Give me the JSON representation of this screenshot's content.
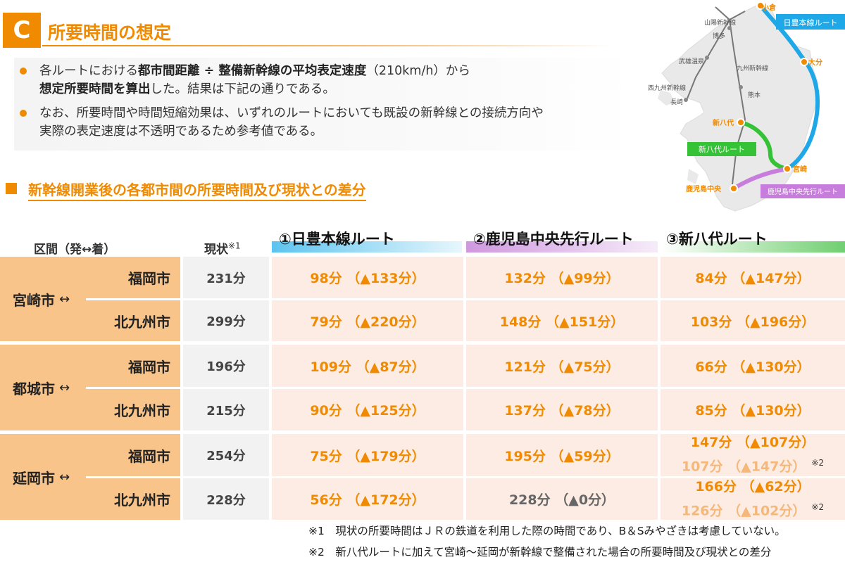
{
  "header": {
    "badge": "C",
    "title": "所要時間の想定"
  },
  "bullets": [
    {
      "p1": "各ルートにおける",
      "b1": "都市間距離 ÷ 整備新幹線の平均表定速度",
      "p2": "（210km/h）から",
      "b2": "想定所要時間を算出",
      "p3": "した。結果は下記の通りである。"
    },
    {
      "line1": "なお、所要時間や時間短縮効果は、いずれのルートにおいても既設の新幹線との接続方向や",
      "line2": "実際の表定速度は不透明であるため参考値である。"
    }
  ],
  "subheading": "新幹線開業後の各都市間の所要時間及び現状との差分",
  "table": {
    "col_section": "区間（発↔着）",
    "col_current": "現状",
    "col_current_note": "※1",
    "routes": [
      "①日豊本線ルート",
      "②鹿児島中央先行ルート",
      "③新八代ルート"
    ],
    "route_colors": [
      "#3fb5e8",
      "#c78ad8",
      "#5cc45c"
    ],
    "origins": [
      {
        "name": "宮崎市",
        "arrow": "↔"
      },
      {
        "name": "都城市",
        "arrow": "↔"
      },
      {
        "name": "延岡市",
        "arrow": "↔"
      }
    ],
    "rows": [
      {
        "dest": "福岡市",
        "current": "231分",
        "r1": "98分 （▲133分）",
        "r2": "132分 （▲99分）",
        "r3": "84分 （▲147分）"
      },
      {
        "dest": "北九州市",
        "current": "299分",
        "r1": "79分 （▲220分）",
        "r2": "148分 （▲151分）",
        "r3": "103分 （▲196分）"
      },
      {
        "dest": "福岡市",
        "current": "196分",
        "r1": "109分 （▲87分）",
        "r2": "121分 （▲75分）",
        "r3": "66分 （▲130分）"
      },
      {
        "dest": "北九州市",
        "current": "215分",
        "r1": "90分 （▲125分）",
        "r2": "137分 （▲78分）",
        "r3": "85分 （▲130分）"
      },
      {
        "dest": "福岡市",
        "current": "254分",
        "r1": "75分 （▲179分）",
        "r2": "195分 （▲59分）",
        "r3": "147分 （▲107分）",
        "r3b": "107分 （▲147分）",
        "r3note": "※2"
      },
      {
        "dest": "北九州市",
        "current": "228分",
        "r1": "56分 （▲172分）",
        "r2": "228分 （▲0分）",
        "r3": "166分 （▲62分）",
        "r3b": "126分 （▲102分）",
        "r3note": "※2"
      }
    ]
  },
  "footnotes": [
    "※1　現状の所要時間はＪＲの鉄道を利用した際の時間であり、B＆Sみやざきは考慮していない。",
    "※2　新八代ルートに加えて宮崎～延岡が新幹線で整備された場合の所要時間及び現状との差分"
  ],
  "map": {
    "labels": {
      "kokura": "小倉",
      "sanyo": "山陽新幹線",
      "hakata": "博多",
      "takeo": "武雄温泉",
      "nishikyushu": "西九州新幹線",
      "nagasaki": "長崎",
      "kyushu": "九州新幹線",
      "kumamoto": "熊本",
      "oita": "大分",
      "shinyatsushiro": "新八代",
      "miyazaki": "宮崎",
      "kagoshima": "鹿児島中央"
    },
    "route_labels": {
      "nippo": "日豊本線ルート",
      "shinyatsushiro": "新八代ルート",
      "kagoshima": "鹿児島中央先行ルート"
    }
  }
}
